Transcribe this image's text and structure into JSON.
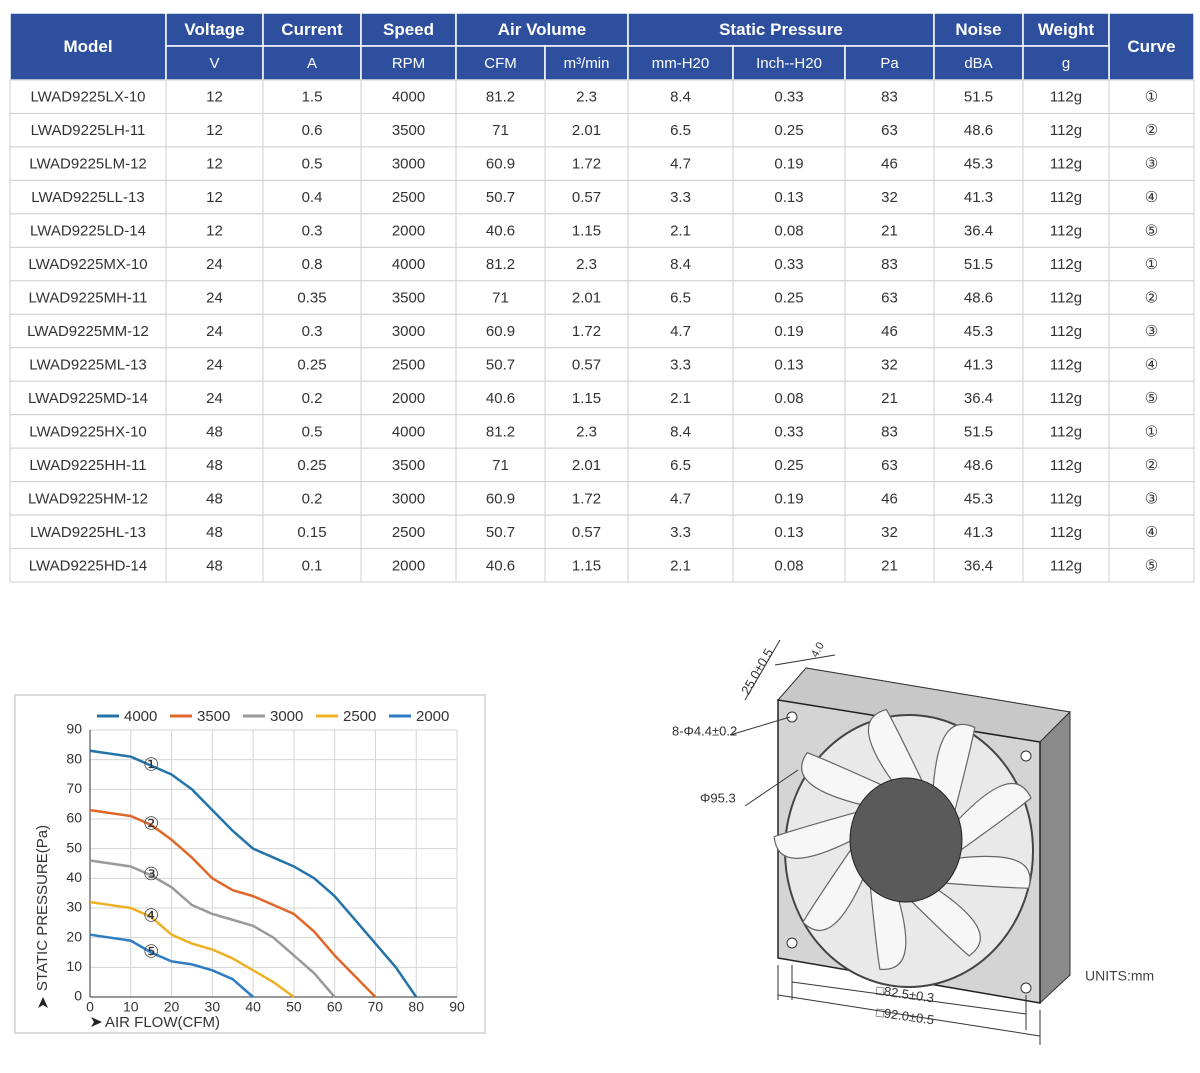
{
  "table": {
    "header": {
      "columns": [
        "Model",
        "Voltage",
        "Current",
        "Speed",
        "Air Volume",
        "Static Pressure",
        "Noise",
        "Weight",
        "Curve"
      ],
      "units": [
        "V",
        "A",
        "RPM",
        "CFM",
        "m³/min",
        "mm-H20",
        "Inch--H20",
        "Pa",
        "dBA",
        "g"
      ]
    },
    "rows": [
      [
        "LWAD9225LX-10",
        "12",
        "1.5",
        "4000",
        "81.2",
        "2.3",
        "8.4",
        "0.33",
        "83",
        "51.5",
        "112g",
        "①"
      ],
      [
        "LWAD9225LH-11",
        "12",
        "0.6",
        "3500",
        "71",
        "2.01",
        "6.5",
        "0.25",
        "63",
        "48.6",
        "112g",
        "②"
      ],
      [
        "LWAD9225LM-12",
        "12",
        "0.5",
        "3000",
        "60.9",
        "1.72",
        "4.7",
        "0.19",
        "46",
        "45.3",
        "112g",
        "③"
      ],
      [
        "LWAD9225LL-13",
        "12",
        "0.4",
        "2500",
        "50.7",
        "0.57",
        "3.3",
        "0.13",
        "32",
        "41.3",
        "112g",
        "④"
      ],
      [
        "LWAD9225LD-14",
        "12",
        "0.3",
        "2000",
        "40.6",
        "1.15",
        "2.1",
        "0.08",
        "21",
        "36.4",
        "112g",
        "⑤"
      ],
      [
        "LWAD9225MX-10",
        "24",
        "0.8",
        "4000",
        "81.2",
        "2.3",
        "8.4",
        "0.33",
        "83",
        "51.5",
        "112g",
        "①"
      ],
      [
        "LWAD9225MH-11",
        "24",
        "0.35",
        "3500",
        "71",
        "2.01",
        "6.5",
        "0.25",
        "63",
        "48.6",
        "112g",
        "②"
      ],
      [
        "LWAD9225MM-12",
        "24",
        "0.3",
        "3000",
        "60.9",
        "1.72",
        "4.7",
        "0.19",
        "46",
        "45.3",
        "112g",
        "③"
      ],
      [
        "LWAD9225ML-13",
        "24",
        "0.25",
        "2500",
        "50.7",
        "0.57",
        "3.3",
        "0.13",
        "32",
        "41.3",
        "112g",
        "④"
      ],
      [
        "LWAD9225MD-14",
        "24",
        "0.2",
        "2000",
        "40.6",
        "1.15",
        "2.1",
        "0.08",
        "21",
        "36.4",
        "112g",
        "⑤"
      ],
      [
        "LWAD9225HX-10",
        "48",
        "0.5",
        "4000",
        "81.2",
        "2.3",
        "8.4",
        "0.33",
        "83",
        "51.5",
        "112g",
        "①"
      ],
      [
        "LWAD9225HH-11",
        "48",
        "0.25",
        "3500",
        "71",
        "2.01",
        "6.5",
        "0.25",
        "63",
        "48.6",
        "112g",
        "②"
      ],
      [
        "LWAD9225HM-12",
        "48",
        "0.2",
        "3000",
        "60.9",
        "1.72",
        "4.7",
        "0.19",
        "46",
        "45.3",
        "112g",
        "③"
      ],
      [
        "LWAD9225HL-13",
        "48",
        "0.15",
        "2500",
        "50.7",
        "0.57",
        "3.3",
        "0.13",
        "32",
        "41.3",
        "112g",
        "④"
      ],
      [
        "LWAD9225HD-14",
        "48",
        "0.1",
        "2000",
        "40.6",
        "1.15",
        "2.1",
        "0.08",
        "21",
        "36.4",
        "112g",
        "⑤"
      ]
    ]
  },
  "chart_data": {
    "type": "line",
    "xlabel": "AIR FLOW(CFM)",
    "ylabel": "STATIC PRESSURE(Pa)",
    "xlim": [
      0,
      90
    ],
    "ylim": [
      0,
      90
    ],
    "xticks": [
      0,
      10,
      20,
      30,
      40,
      50,
      60,
      70,
      80,
      90
    ],
    "yticks": [
      0,
      10,
      20,
      30,
      40,
      50,
      60,
      70,
      80,
      90
    ],
    "grid": true,
    "legend": "top",
    "series": [
      {
        "name": "4000",
        "color": "#2473a8",
        "label": "①",
        "x": [
          0,
          10,
          15,
          20,
          25,
          30,
          35,
          40,
          45,
          50,
          55,
          60,
          65,
          70,
          75,
          80
        ],
        "values": [
          83,
          81,
          78,
          75,
          70,
          63,
          56,
          50,
          47,
          44,
          40,
          34,
          26,
          18,
          10,
          0
        ]
      },
      {
        "name": "3500",
        "color": "#e0672a",
        "label": "②",
        "x": [
          0,
          10,
          15,
          20,
          25,
          30,
          35,
          40,
          45,
          50,
          55,
          60,
          65,
          70
        ],
        "values": [
          63,
          61,
          58,
          53,
          47,
          40,
          36,
          34,
          31,
          28,
          22,
          14,
          7,
          0
        ]
      },
      {
        "name": "3000",
        "color": "#9a9a9a",
        "label": "③",
        "x": [
          0,
          10,
          15,
          20,
          25,
          30,
          35,
          40,
          45,
          50,
          55,
          60
        ],
        "values": [
          46,
          44,
          41,
          37,
          31,
          28,
          26,
          24,
          20,
          14,
          8,
          0
        ]
      },
      {
        "name": "2500",
        "color": "#f0b024",
        "label": "④",
        "x": [
          0,
          10,
          15,
          20,
          25,
          30,
          35,
          40,
          45,
          50
        ],
        "values": [
          32,
          30,
          27,
          21,
          18,
          16,
          13,
          9,
          5,
          0
        ]
      },
      {
        "name": "2000",
        "color": "#2e7cc4",
        "label": "⑤",
        "x": [
          0,
          10,
          15,
          20,
          25,
          30,
          35,
          40
        ],
        "values": [
          21,
          19,
          15,
          12,
          11,
          9,
          6,
          0
        ]
      }
    ]
  },
  "drawing": {
    "dimensions": [
      "25.0±0.5",
      "4.0",
      "8-Φ4.4±0.2",
      "Φ95.3",
      "□82.5±0.3",
      "□92.0±0.5"
    ],
    "units": "UNITS:mm"
  }
}
